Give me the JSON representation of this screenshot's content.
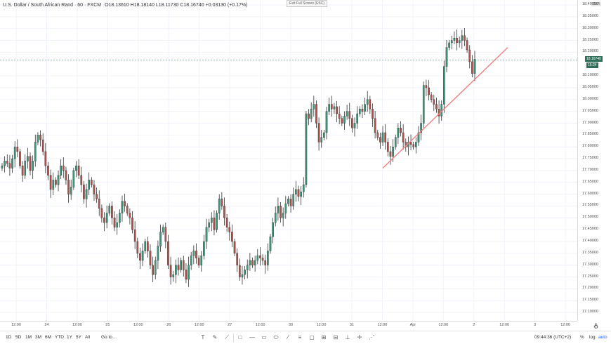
{
  "header": {
    "symbol": "U.S. Dollar / South African Rand",
    "interval": "60",
    "source": "FXCM",
    "ohlc": "O18.13610 H18.18140 L18.11730 C18.16740 +0.03130 (+0.17%)",
    "exit_fullscreen": "Exit Full Screen (ESC)"
  },
  "price_axis": {
    "currency": "ZAR",
    "labels": [
      "18.40000",
      "18.35000",
      "18.30000",
      "18.25000",
      "18.20000",
      "18.10000",
      "18.05000",
      "18.00000",
      "17.95000",
      "17.90000",
      "17.85000",
      "17.80000",
      "17.75000",
      "17.70000",
      "17.65000",
      "17.60000",
      "17.55000",
      "17.50000",
      "17.45000",
      "17.40000",
      "17.35000",
      "17.30000",
      "17.25000",
      "17.20000",
      "17.15000",
      "17.10000"
    ],
    "current_price": "18.16740",
    "countdown": "15:24"
  },
  "time_axis": {
    "labels": [
      "12:00",
      "24",
      "12:00",
      "25",
      "12:00",
      "26",
      "12:00",
      "27",
      "12:00",
      "30",
      "12:00",
      "31",
      "12:00",
      "Apr",
      "12:00",
      "2",
      "12:00",
      "3",
      "12:00",
      "6"
    ]
  },
  "colors": {
    "up": "#26a69a",
    "down": "#ef5350",
    "upFill": "#3a9a7c",
    "downFill": "#b5504a",
    "trendline": "#f08080",
    "grid": "#f0f3fa"
  },
  "trendline": {
    "start": {
      "date": "Mar 31 ~20:00",
      "price": 17.71
    },
    "end": {
      "date": "Apr 2 ~23:00",
      "price": 18.22
    }
  },
  "chart_data": {
    "type": "candlestick",
    "title": "U.S. Dollar / South African Rand, 60, FXCM",
    "ylim": [
      17.05,
      18.42
    ],
    "close": [
      17.72,
      17.74,
      17.73,
      17.71,
      17.75,
      17.8,
      17.78,
      17.72,
      17.68,
      17.74,
      17.76,
      17.7,
      17.74,
      17.82,
      17.85,
      17.83,
      17.78,
      17.72,
      17.68,
      17.62,
      17.66,
      17.64,
      17.68,
      17.72,
      17.7,
      17.66,
      17.6,
      17.63,
      17.7,
      17.72,
      17.68,
      17.64,
      17.58,
      17.62,
      17.66,
      17.64,
      17.6,
      17.58,
      17.54,
      17.5,
      17.48,
      17.52,
      17.55,
      17.5,
      17.46,
      17.48,
      17.52,
      17.57,
      17.55,
      17.52,
      17.5,
      17.45,
      17.4,
      17.35,
      17.32,
      17.36,
      17.4,
      17.36,
      17.3,
      17.26,
      17.32,
      17.38,
      17.44,
      17.46,
      17.4,
      17.3,
      17.25,
      17.26,
      17.3,
      17.28,
      17.32,
      17.28,
      17.24,
      17.3,
      17.34,
      17.36,
      17.33,
      17.3,
      17.34,
      17.4,
      17.46,
      17.48,
      17.5,
      17.45,
      17.52,
      17.58,
      17.55,
      17.5,
      17.46,
      17.44,
      17.4,
      17.35,
      17.3,
      17.25,
      17.26,
      17.28,
      17.3,
      17.32,
      17.3,
      17.32,
      17.34,
      17.33,
      17.32,
      17.3,
      17.36,
      17.42,
      17.48,
      17.52,
      17.55,
      17.5,
      17.52,
      17.56,
      17.58,
      17.55,
      17.6,
      17.62,
      17.59,
      17.61,
      17.64,
      17.94,
      17.92,
      17.96,
      17.98,
      17.9,
      17.82,
      17.84,
      17.86,
      17.95,
      17.98,
      17.96,
      17.97,
      17.94,
      17.92,
      17.9,
      17.93,
      17.95,
      17.92,
      17.88,
      17.9,
      17.94,
      17.96,
      17.95,
      17.98,
      18.0,
      17.96,
      17.92,
      17.86,
      17.84,
      17.82,
      17.86,
      17.82,
      17.78,
      17.76,
      17.8,
      17.84,
      17.88,
      17.86,
      17.82,
      17.8,
      17.82,
      17.81,
      17.8,
      17.82,
      17.86,
      17.9,
      18.06,
      18.05,
      18.02,
      18.0,
      17.98,
      17.96,
      17.93,
      17.98,
      18.14,
      18.22,
      18.24,
      18.25,
      18.26,
      18.24,
      18.25,
      18.27,
      18.25,
      18.21,
      18.16,
      18.11,
      18.17
    ]
  },
  "toolbar": {
    "timeframes": [
      "1D",
      "5D",
      "1M",
      "3M",
      "6M",
      "YTD",
      "1Y",
      "5Y",
      "All"
    ],
    "goto": "Go to…",
    "clock": "09:44:36 (UTC+2)",
    "percent": "%",
    "log": "log",
    "auto": "auto"
  }
}
